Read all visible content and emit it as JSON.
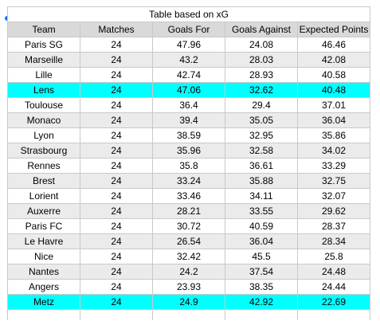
{
  "table": {
    "title": "Table based on xG",
    "headers": [
      "Team",
      "Matches",
      "Goals For",
      "Goals Against",
      "Expected Points"
    ],
    "highlight_color": "#00ffff",
    "rows": [
      {
        "team": "Paris SG",
        "matches": "24",
        "gf": "47.96",
        "ga": "24.08",
        "xp": "46.46",
        "highlight": false
      },
      {
        "team": "Marseille",
        "matches": "24",
        "gf": "43.2",
        "ga": "28.03",
        "xp": "42.08",
        "highlight": false
      },
      {
        "team": "Lille",
        "matches": "24",
        "gf": "42.74",
        "ga": "28.93",
        "xp": "40.58",
        "highlight": false
      },
      {
        "team": "Lens",
        "matches": "24",
        "gf": "47.06",
        "ga": "32.62",
        "xp": "40.48",
        "highlight": true
      },
      {
        "team": "Toulouse",
        "matches": "24",
        "gf": "36.4",
        "ga": "29.4",
        "xp": "37.01",
        "highlight": false
      },
      {
        "team": "Monaco",
        "matches": "24",
        "gf": "39.4",
        "ga": "35.05",
        "xp": "36.04",
        "highlight": false
      },
      {
        "team": "Lyon",
        "matches": "24",
        "gf": "38.59",
        "ga": "32.95",
        "xp": "35.86",
        "highlight": false
      },
      {
        "team": "Strasbourg",
        "matches": "24",
        "gf": "35.96",
        "ga": "32.58",
        "xp": "34.02",
        "highlight": false
      },
      {
        "team": "Rennes",
        "matches": "24",
        "gf": "35.8",
        "ga": "36.61",
        "xp": "33.29",
        "highlight": false
      },
      {
        "team": "Brest",
        "matches": "24",
        "gf": "33.24",
        "ga": "35.88",
        "xp": "32.75",
        "highlight": false
      },
      {
        "team": "Lorient",
        "matches": "24",
        "gf": "33.46",
        "ga": "34.11",
        "xp": "32.07",
        "highlight": false
      },
      {
        "team": "Auxerre",
        "matches": "24",
        "gf": "28.21",
        "ga": "33.55",
        "xp": "29.62",
        "highlight": false
      },
      {
        "team": "Paris FC",
        "matches": "24",
        "gf": "30.72",
        "ga": "40.59",
        "xp": "28.37",
        "highlight": false
      },
      {
        "team": "Le Havre",
        "matches": "24",
        "gf": "26.54",
        "ga": "36.04",
        "xp": "28.34",
        "highlight": false
      },
      {
        "team": "Nice",
        "matches": "24",
        "gf": "32.42",
        "ga": "45.5",
        "xp": "25.8",
        "highlight": false
      },
      {
        "team": "Nantes",
        "matches": "24",
        "gf": "24.2",
        "ga": "37.54",
        "xp": "24.48",
        "highlight": false
      },
      {
        "team": "Angers",
        "matches": "24",
        "gf": "23.93",
        "ga": "38.35",
        "xp": "24.44",
        "highlight": false
      },
      {
        "team": "Metz",
        "matches": "24",
        "gf": "24.9",
        "ga": "42.92",
        "xp": "22.69",
        "highlight": true
      }
    ]
  }
}
